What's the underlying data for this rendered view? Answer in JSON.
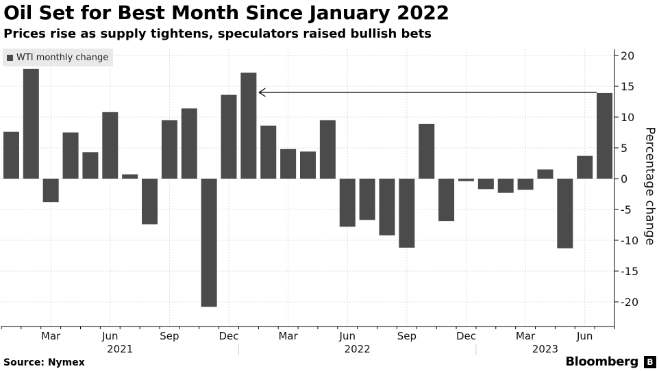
{
  "title": "Oil Set for Best Month Since January 2022",
  "subtitle": "Prices rise as supply tightens, speculators raised bullish bets",
  "source": "Source: Nymex",
  "brand": "Bloomberg",
  "brand_icon": "B",
  "colors": {
    "bar": "#4b4b4b",
    "grid": "#dcdcdc",
    "legend_bg": "#e9e9e9"
  },
  "chart_data": {
    "type": "bar",
    "title": "Oil Set for Best Month Since January 2022",
    "ylabel": "Percentage change",
    "ylim": [
      -24,
      21
    ],
    "yticks": [
      20,
      15,
      10,
      5,
      0,
      -5,
      -10,
      -15,
      -20
    ],
    "ytick_side": "right",
    "grid": true,
    "legend_placement": "top-left",
    "categories": [
      "2021-01",
      "2021-02",
      "2021-03",
      "2021-04",
      "2021-05",
      "2021-06",
      "2021-07",
      "2021-08",
      "2021-09",
      "2021-10",
      "2021-11",
      "2021-12",
      "2022-01",
      "2022-02",
      "2022-03",
      "2022-04",
      "2022-05",
      "2022-06",
      "2022-07",
      "2022-08",
      "2022-09",
      "2022-10",
      "2022-11",
      "2022-12",
      "2023-01",
      "2023-02",
      "2023-03",
      "2023-04",
      "2023-05",
      "2023-06",
      "2023-07"
    ],
    "series": [
      {
        "name": "WTI monthly change",
        "values": [
          7.6,
          17.8,
          -3.8,
          7.5,
          4.3,
          10.8,
          0.7,
          -7.4,
          9.5,
          11.4,
          -20.8,
          13.6,
          17.2,
          8.6,
          4.8,
          4.4,
          9.5,
          -7.8,
          -6.7,
          -9.2,
          -11.2,
          8.9,
          -6.9,
          -0.4,
          -1.7,
          -2.3,
          -1.8,
          1.5,
          -11.3,
          3.7,
          13.9
        ]
      }
    ],
    "xtick_labels": [
      {
        "category": "2021-03",
        "label": "Mar"
      },
      {
        "category": "2021-06",
        "label": "Jun"
      },
      {
        "category": "2021-09",
        "label": "Sep"
      },
      {
        "category": "2021-12",
        "label": "Dec"
      },
      {
        "category": "2022-03",
        "label": "Mar"
      },
      {
        "category": "2022-06",
        "label": "Jun"
      },
      {
        "category": "2022-09",
        "label": "Sep"
      },
      {
        "category": "2022-12",
        "label": "Dec"
      },
      {
        "category": "2023-03",
        "label": "Mar"
      },
      {
        "category": "2023-06",
        "label": "Jun"
      }
    ],
    "year_labels": [
      {
        "label": "2021",
        "first": "2021-01",
        "last": "2021-12"
      },
      {
        "label": "2022",
        "first": "2022-01",
        "last": "2022-12"
      },
      {
        "label": "2023",
        "first": "2023-01",
        "last": "2023-07"
      }
    ],
    "annotations": [
      {
        "type": "arrow",
        "from_category": "2023-07",
        "to_category": "2022-01",
        "y": 14
      }
    ]
  }
}
